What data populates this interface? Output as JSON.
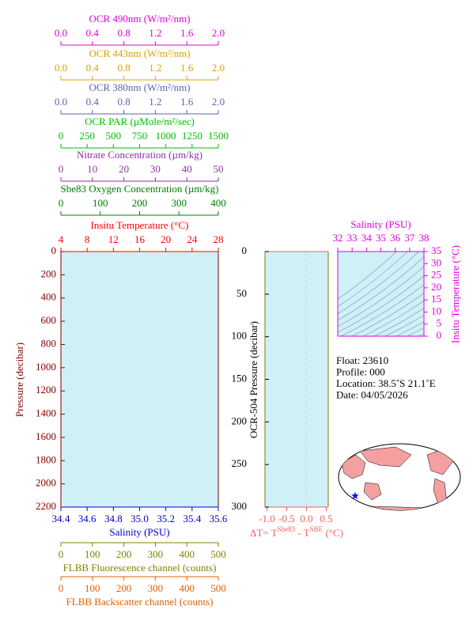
{
  "chart_data": [
    {
      "type": "profile",
      "top_axes": [
        {
          "title": "OCR 490nm (W/m²/nm)",
          "color": "#e000e0",
          "xlim": [
            0,
            2
          ],
          "xticks": [
            {
              "value": 0,
              "label": "0.0"
            },
            0.4,
            0.8,
            1.2,
            1.6,
            {
              "value": 2,
              "label": "2.0"
            }
          ]
        },
        {
          "title": "OCR 443nm (W/m²/nm)",
          "color": "#e0a000",
          "xlim": [
            0,
            2
          ],
          "xticks": [
            {
              "value": 0,
              "label": "0.0"
            },
            0.4,
            0.8,
            1.2,
            1.6,
            {
              "value": 2,
              "label": "2.0"
            }
          ]
        },
        {
          "title": "OCR 380nm (W/m²/nm)",
          "color": "#6060b0",
          "xlim": [
            0,
            2
          ],
          "xticks": [
            {
              "value": 0,
              "label": "0.0"
            },
            0.4,
            0.8,
            1.2,
            1.6,
            {
              "value": 2,
              "label": "2.0"
            }
          ]
        },
        {
          "title": "OCR PAR (µMole/m²/sec)",
          "color": "#00c000",
          "xlim": [
            0,
            1500
          ],
          "xticks": [
            0,
            250,
            500,
            750,
            1000,
            1250,
            1500
          ]
        },
        {
          "title": "Nitrate Concentration (µm/kg)",
          "color": "#9030a0",
          "xlim": [
            0,
            50
          ],
          "xticks": [
            0,
            10,
            20,
            30,
            40,
            50
          ]
        },
        {
          "title": "Sbe83 Oxygen Concentration (µm/kg)",
          "color": "#008000",
          "xlim": [
            0,
            400
          ],
          "xticks": [
            0,
            100,
            200,
            300,
            400
          ]
        },
        {
          "title": "Insitu Temperature (°C)",
          "color": "#ff0000",
          "xlim": [
            4,
            28
          ],
          "xticks": [
            4,
            8,
            12,
            16,
            20,
            24,
            28
          ]
        }
      ],
      "bottom_axes": [
        {
          "title": "Salinity (PSU)",
          "color": "#0000cc",
          "xlim": [
            34.4,
            35.6
          ],
          "xticks": [
            34.4,
            34.6,
            34.8,
            {
              "value": 35,
              "label": "35.0"
            },
            35.2,
            35.4,
            35.6
          ]
        },
        {
          "title": "FLBB Fluorescence channel (counts)",
          "color": "#808000",
          "xlim": [
            0,
            500
          ],
          "xticks": [
            0,
            100,
            200,
            300,
            400,
            500
          ]
        },
        {
          "title": "FLBB Backscatter channel (counts)",
          "color": "#e06000",
          "xlim": [
            0,
            500
          ],
          "xticks": [
            0,
            100,
            200,
            300,
            400,
            500
          ]
        }
      ],
      "ylabel": "Pressure (decibar)",
      "ylabel_color": "#800000",
      "ylim": [
        2200,
        0
      ],
      "yticks": [
        0,
        200,
        400,
        600,
        800,
        1000,
        1200,
        1400,
        1600,
        1800,
        2000,
        2200
      ]
    },
    {
      "type": "difference",
      "ylabel": "OCR-504 Pressure (decibar)",
      "ylim": [
        300,
        0
      ],
      "yticks": [
        0,
        50,
        100,
        150,
        200,
        250,
        300
      ],
      "xlabel_parts": [
        "ΔT= T",
        "Sbe83",
        " - T",
        "SBE",
        " (°C)"
      ],
      "color": "#f06060",
      "xlim": [
        -1.05,
        0.55
      ],
      "xticks": [
        {
          "value": -1,
          "label": "-1.0"
        },
        -0.5,
        {
          "value": 0,
          "label": "0.0"
        },
        0.5
      ]
    },
    {
      "type": "ts",
      "xlabel": "Salinity (PSU)",
      "ylabel": "Insitu Temperature (°C)",
      "color": "#e000e0",
      "xlim": [
        32,
        38
      ],
      "xticks": [
        32,
        33,
        34,
        35,
        36,
        37,
        38
      ],
      "ylim": [
        0,
        35
      ],
      "yticks": [
        0,
        5,
        10,
        15,
        20,
        25,
        30,
        35
      ]
    },
    {
      "type": "info",
      "lines": [
        "Float:  23610",
        "Profile:  000",
        "Location:  38.5˚S  21.1˚E",
        "Date:  04/05/2026"
      ]
    }
  ]
}
